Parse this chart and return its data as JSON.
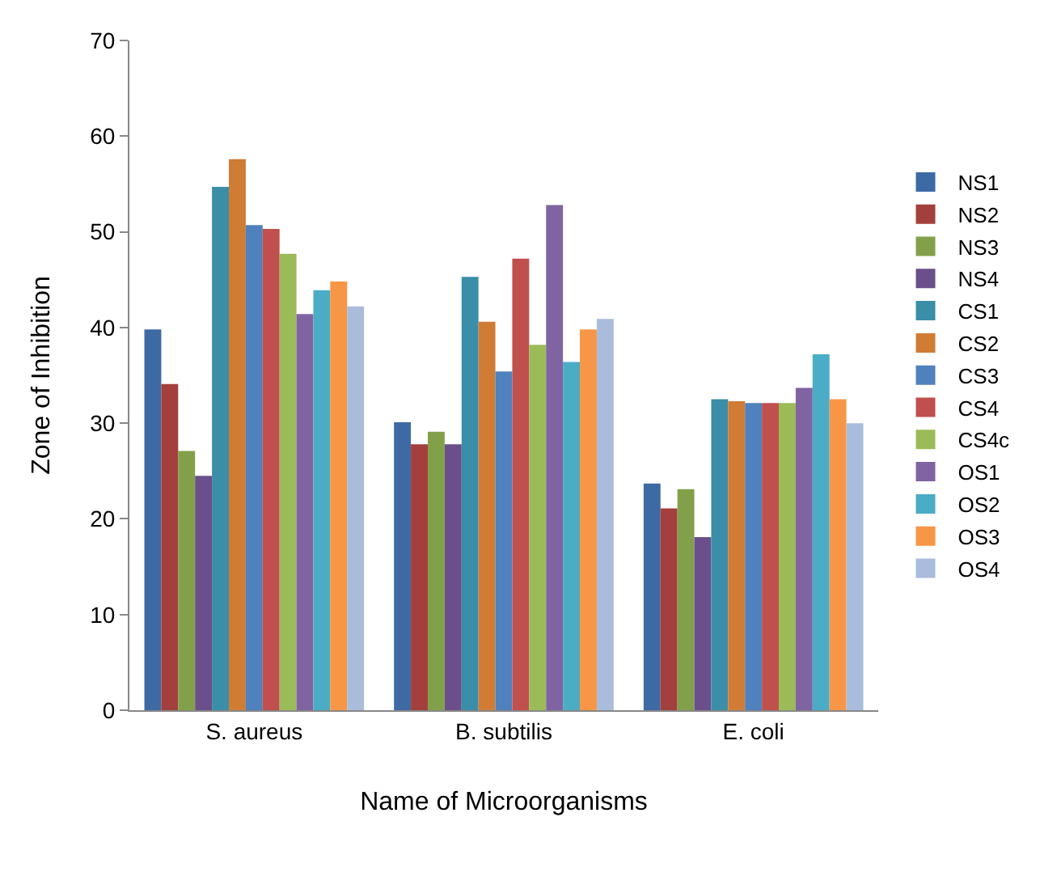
{
  "chart_data": {
    "type": "bar",
    "xlabel": "Name of Microorganisms",
    "ylabel": "Zone of Inhibition",
    "categories": [
      "S. aureus",
      "B. subtilis",
      "E. coli"
    ],
    "series": [
      {
        "name": "NS1",
        "color": "#3d6aa3",
        "values": [
          39.8,
          30.1,
          23.7
        ]
      },
      {
        "name": "NS2",
        "color": "#a33f3c",
        "values": [
          34.1,
          27.8,
          21.1
        ]
      },
      {
        "name": "NS3",
        "color": "#82a04a",
        "values": [
          27.1,
          29.1,
          23.1
        ]
      },
      {
        "name": "NS4",
        "color": "#6a4f8a",
        "values": [
          24.5,
          27.8,
          18.1
        ]
      },
      {
        "name": "CS1",
        "color": "#3b8ea8",
        "values": [
          54.7,
          45.3,
          32.5
        ]
      },
      {
        "name": "CS2",
        "color": "#d07c35",
        "values": [
          57.6,
          40.6,
          32.3
        ]
      },
      {
        "name": "CS3",
        "color": "#4f81bd",
        "values": [
          50.7,
          35.4,
          32.1
        ]
      },
      {
        "name": "CS4",
        "color": "#c0504d",
        "values": [
          50.3,
          47.2,
          32.1
        ]
      },
      {
        "name": "CS4c",
        "color": "#9bbb59",
        "values": [
          47.7,
          38.2,
          32.1
        ]
      },
      {
        "name": "OS1",
        "color": "#8064a2",
        "values": [
          41.4,
          52.8,
          33.7
        ]
      },
      {
        "name": "OS2",
        "color": "#4bacc6",
        "values": [
          43.9,
          36.4,
          37.2
        ]
      },
      {
        "name": "OS3",
        "color": "#f79646",
        "values": [
          44.8,
          39.8,
          32.5
        ]
      },
      {
        "name": "OS4",
        "color": "#a9bcdc",
        "values": [
          42.2,
          40.9,
          30.0
        ]
      }
    ],
    "ylim": [
      0,
      70
    ],
    "yticks": [
      0,
      10,
      20,
      30,
      40,
      50,
      60,
      70
    ],
    "grid": false,
    "legend": "right"
  }
}
